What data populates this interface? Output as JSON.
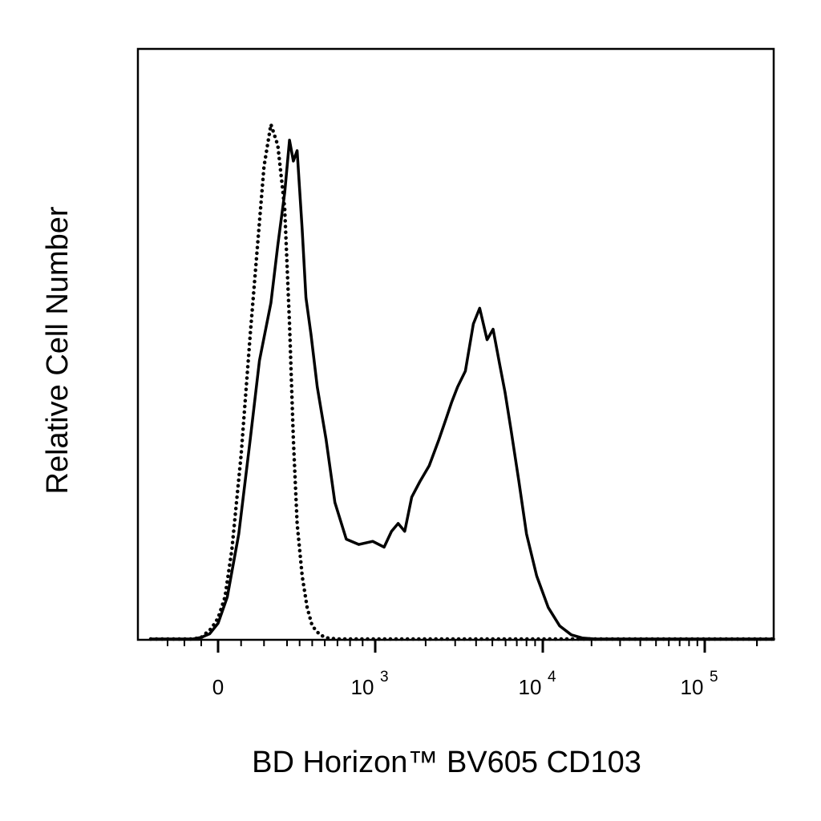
{
  "chart_data": {
    "type": "line",
    "xlabel": "BD Horizon™ BV605 CD103",
    "ylabel": "Relative Cell Number",
    "x_scale": "biexponential",
    "x_ticks": [
      {
        "value": 0,
        "base": "0",
        "exp": ""
      },
      {
        "value": 1000,
        "base": "10",
        "exp": "3"
      },
      {
        "value": 10000,
        "base": "10",
        "exp": "4"
      },
      {
        "value": 100000,
        "base": "10",
        "exp": "5"
      }
    ],
    "xlim": [
      -400,
      250000
    ],
    "ylim": [
      0,
      100
    ],
    "grid": false,
    "legend": "none",
    "series": [
      {
        "style": "solid",
        "color": "#000000",
        "x": [
          -400,
          -150,
          -100,
          -50,
          0,
          40,
          90,
          140,
          180,
          230,
          260,
          290,
          320,
          350,
          380,
          420,
          450,
          490,
          540,
          610,
          680,
          770,
          870,
          980,
          1130,
          1250,
          1370,
          1500,
          1650,
          1850,
          2100,
          2400,
          2650,
          2850,
          3100,
          3450,
          3850,
          4200,
          4650,
          5050,
          5550,
          5950,
          6450,
          7200,
          8000,
          9200,
          10800,
          12700,
          15000,
          17500,
          21000,
          26000,
          32000,
          45000,
          80000,
          250000
        ],
        "y": [
          0,
          0,
          0.3,
          1,
          3,
          8,
          20,
          38,
          53,
          64,
          75,
          85,
          95,
          91,
          93,
          78,
          65,
          58,
          48,
          38,
          26,
          19,
          18,
          18.6,
          17.5,
          20.5,
          22,
          20.5,
          27,
          30,
          33,
          38,
          42,
          45,
          48,
          51,
          60,
          63,
          57,
          59,
          52,
          47,
          40,
          30,
          20,
          12,
          6,
          2.5,
          0.8,
          0.2,
          0,
          0,
          0,
          0,
          0,
          0
        ]
      },
      {
        "style": "dotted",
        "color": "#000000",
        "x": [
          -400,
          -150,
          -100,
          -40,
          0,
          30,
          60,
          100,
          140,
          170,
          200,
          230,
          260,
          290,
          320,
          350,
          380,
          420,
          460,
          500,
          560,
          620,
          700,
          1000,
          250000
        ],
        "y": [
          0,
          0,
          0.3,
          2,
          4,
          8,
          17,
          35,
          58,
          74,
          90,
          98,
          94,
          82,
          60,
          38,
          22,
          12,
          6,
          2.5,
          0.8,
          0.2,
          0,
          0,
          0
        ]
      }
    ]
  }
}
